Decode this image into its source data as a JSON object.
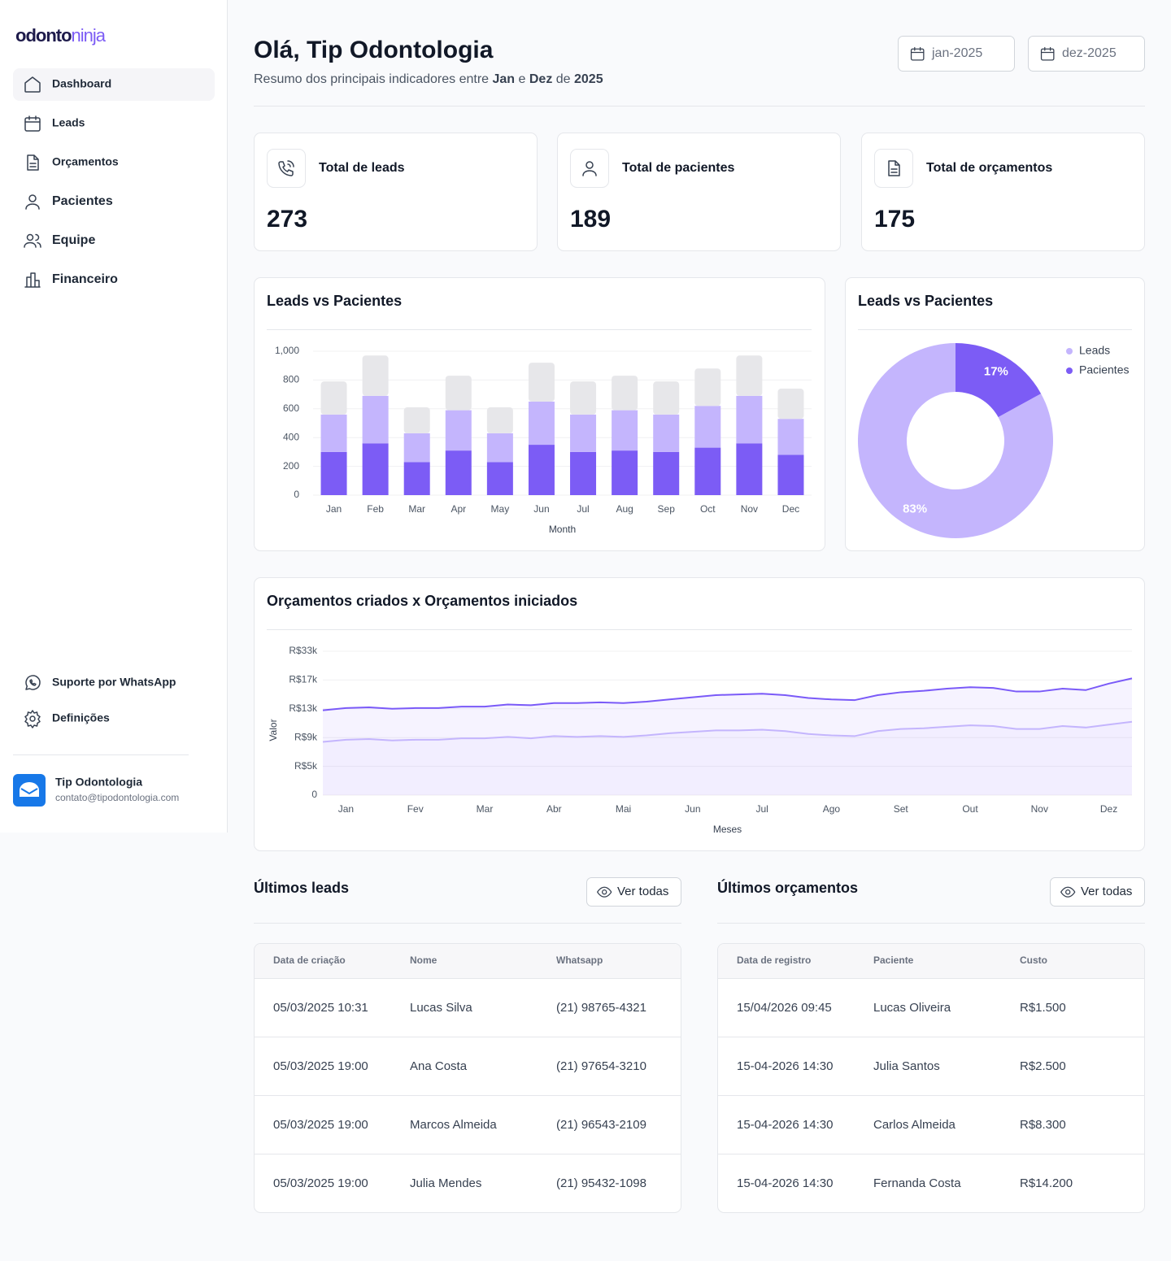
{
  "sidebar": {
    "logo": [
      "odonto",
      "ninja"
    ],
    "nav": [
      "Dashboard",
      "Leads",
      "Orçamentos",
      "Pacientes",
      "Equipe",
      "Financeiro"
    ],
    "active_nav": 0,
    "footer_nav": [
      "Suporte por WhatsApp",
      "Definições"
    ],
    "user": {
      "name": "Tip Odontologia",
      "email": "contato@tipodontologia.com"
    }
  },
  "header": {
    "title": "Olá, Tip Odontologia",
    "subtitle": [
      {
        "text": "Resumo dos principais indicadores entre ",
        "bold": false
      },
      {
        "text": "Jan",
        "bold": true
      },
      {
        "text": " e ",
        "bold": false
      },
      {
        "text": "Dez",
        "bold": true
      },
      {
        "text": " de ",
        "bold": false
      },
      {
        "text": "2025",
        "bold": true
      }
    ],
    "date_from": "jan-2025",
    "date_to": "dez-2025"
  },
  "kpis": [
    {
      "label": "Total de leads",
      "value": 273
    },
    {
      "label": "Total de pacientes",
      "value": 189
    },
    {
      "label": "Total de orçamentos",
      "value": 175
    }
  ],
  "chart_data": [
    {
      "type": "bar",
      "stacked": true,
      "title": "Leads vs Pacientes",
      "x_label": "Month",
      "categories": [
        "Jan",
        "Feb",
        "Mar",
        "Apr",
        "May",
        "Jun",
        "Jul",
        "Aug",
        "Sep",
        "Oct",
        "Nov",
        "Dec"
      ],
      "series": [
        {
          "color": "#7c5cf5",
          "values": [
            300,
            360,
            230,
            310,
            230,
            350,
            300,
            310,
            300,
            330,
            360,
            280
          ]
        },
        {
          "color": "#c4b5fd",
          "values": [
            260,
            330,
            200,
            280,
            200,
            300,
            260,
            280,
            260,
            290,
            330,
            250
          ]
        },
        {
          "color": "#e7e7ea",
          "values": [
            230,
            280,
            180,
            240,
            180,
            270,
            230,
            240,
            230,
            260,
            280,
            210
          ]
        }
      ],
      "ylim": [
        0,
        1000
      ],
      "yticks": [
        0,
        200,
        400,
        600,
        800,
        {
          "value": 1000,
          "label": "1,000"
        }
      ],
      "grid": true
    },
    {
      "type": "pie",
      "donut": true,
      "title": "Leads vs Pacientes",
      "categories": [
        "Leads",
        "Pacientes"
      ],
      "values": [
        83,
        17
      ],
      "value_labels": [
        "83%",
        "17%"
      ],
      "colors": [
        "#c4b5fd",
        "#7c5cf5"
      ],
      "legend": "top-right"
    },
    {
      "type": "line",
      "area": true,
      "title": "Orçamentos criados x Orçamentos iniciados",
      "x_label": "Meses",
      "y_label": "Valor",
      "categories": [
        null,
        "Jan",
        null,
        null,
        "Fev",
        null,
        null,
        "Mar",
        null,
        null,
        "Abr",
        null,
        null,
        "Mai",
        null,
        null,
        "Jun",
        null,
        null,
        "Jul",
        null,
        null,
        "Ago",
        null,
        null,
        "Set",
        null,
        null,
        "Out",
        null,
        null,
        "Nov",
        null,
        null,
        "Dez",
        null
      ],
      "series": [
        {
          "color": "#7a5af8",
          "values": [
            12800,
            13100,
            13200,
            13000,
            13100,
            13100,
            13300,
            13300,
            13600,
            13500,
            13800,
            13800,
            13900,
            13800,
            14000,
            14300,
            14600,
            14900,
            15000,
            15100,
            14900,
            14500,
            14300,
            14200,
            14900,
            15300,
            15500,
            15800,
            16000,
            15900,
            15400,
            15400,
            15800,
            15600,
            16500,
            17900
          ]
        },
        {
          "color": "#c4b5fd",
          "values": [
            8400,
            8700,
            8800,
            8600,
            8700,
            8700,
            8900,
            8900,
            9100,
            8900,
            9200,
            9100,
            9200,
            9100,
            9300,
            9600,
            9800,
            10000,
            10000,
            10100,
            9900,
            9500,
            9300,
            9200,
            9900,
            10200,
            10300,
            10500,
            10700,
            10600,
            10200,
            10200,
            10600,
            10400,
            10800,
            11200
          ]
        }
      ],
      "ylim": [
        0,
        33000
      ],
      "yticks": [
        0,
        {
          "value": 5000,
          "label": "R$5k"
        },
        {
          "value": 9000,
          "label": "R$9k"
        },
        {
          "value": 13000,
          "label": "R$13k"
        },
        {
          "value": 17000,
          "label": "R$17k"
        },
        {
          "value": 33000,
          "label": "R$33k"
        }
      ],
      "grid": true
    }
  ],
  "tables": [
    {
      "title": "Últimos leads",
      "button": "Ver todas",
      "columns": [
        "Data de criação",
        "Nome",
        "Whatsapp"
      ],
      "rows": [
        [
          "05/03/2025 10:31",
          "Lucas Silva",
          "(21) 98765-4321"
        ],
        [
          "05/03/2025 19:00",
          "Ana Costa",
          "(21) 97654-3210"
        ],
        [
          "05/03/2025 19:00",
          "Marcos Almeida",
          "(21) 96543-2109"
        ],
        [
          "05/03/2025 19:00",
          "Julia Mendes",
          "(21) 95432-1098"
        ]
      ]
    },
    {
      "title": "Últimos orçamentos",
      "button": "Ver todas",
      "columns": [
        "Data de registro",
        "Paciente",
        "Custo"
      ],
      "rows": [
        [
          "15/04/2026 09:45",
          "Lucas Oliveira",
          "R$1.500"
        ],
        [
          "15-04-2026 14:30",
          "Julia Santos",
          "R$2.500"
        ],
        [
          "15-04-2026 14:30",
          "Carlos Almeida",
          "R$8.300"
        ],
        [
          "15-04-2026 14:30",
          "Fernanda Costa",
          "R$14.200"
        ]
      ]
    }
  ]
}
